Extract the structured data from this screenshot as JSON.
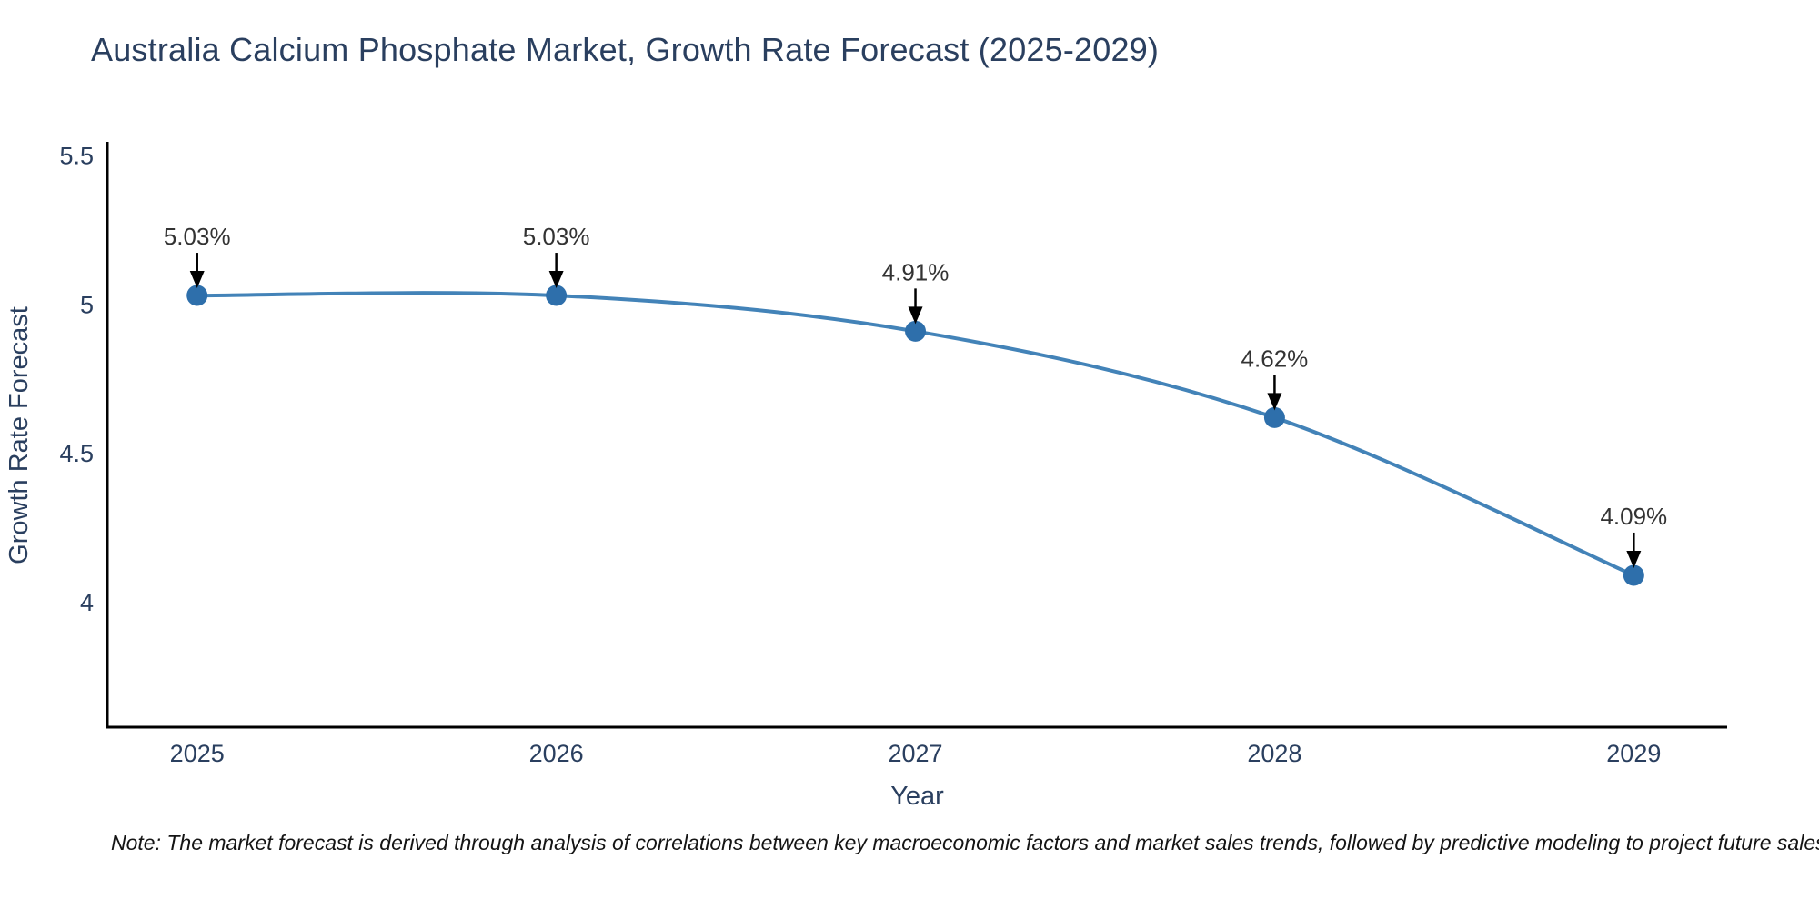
{
  "chart_data": {
    "type": "line",
    "title": "Australia Calcium Phosphate Market, Growth Rate Forecast (2025-2029)",
    "xlabel": "Year",
    "ylabel": "Growth Rate Forecast",
    "note": "Note: The market forecast is derived through analysis of correlations between key macroeconomic factors and market sales trends, followed by predictive modeling to project future sales",
    "x": [
      2025,
      2026,
      2027,
      2028,
      2029
    ],
    "x_tick_labels": [
      "2025",
      "2026",
      "2027",
      "2028",
      "2029"
    ],
    "values": [
      5.03,
      5.03,
      4.91,
      4.62,
      4.09
    ],
    "point_labels": [
      "5.03%",
      "5.03%",
      "4.91%",
      "4.62%",
      "4.09%"
    ],
    "yticks": [
      4,
      4.5,
      5,
      5.5
    ],
    "ytick_labels": [
      "4",
      "4.5",
      "5",
      "5.5"
    ],
    "xlim": [
      2024.75,
      2029.26
    ],
    "ylim": [
      3.58,
      5.54
    ],
    "line_shape": "spline",
    "grid": false,
    "legend": "none",
    "colors": {
      "background": "#ffffff",
      "line": "#4383b8",
      "marker": "#2e6fab",
      "axis_line": "#000000",
      "axis_text": "#2a3f5f",
      "annotation_text": "#333333",
      "arrow": "#000000",
      "note_text": "#141414"
    }
  }
}
